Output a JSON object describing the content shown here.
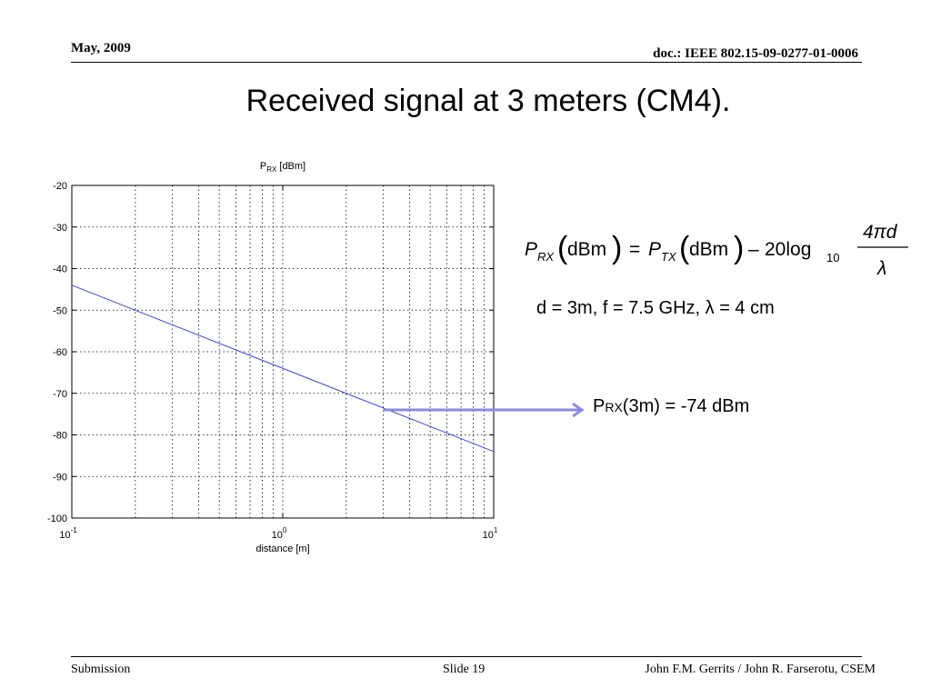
{
  "header": {
    "date": "May, 2009",
    "doc": "doc.: IEEE 802.15-09-0277-01-0006"
  },
  "slide_title": "Received signal at 3 meters (CM4).",
  "equation": {
    "lhs_symbol": "P",
    "lhs_sub": "RX",
    "unit": "dBm",
    "rhs_symbol": "P",
    "rhs_sub": "TX",
    "minus": "–",
    "coef": "20log",
    "log_base": "10",
    "numerator": "4πd",
    "denominator": "λ",
    "equals": "="
  },
  "params_text": "d = 3m, f = 7.5 GHz,  λ = 4 cm",
  "annotation": {
    "prefix": "P",
    "sub": "RX",
    "suffix": "(3m) = -74 dBm"
  },
  "chart_data": {
    "type": "line",
    "title_main": "P",
    "title_sub": "RX",
    "title_unit": " [dBm]",
    "xlabel": "distance [m]",
    "xscale": "log",
    "xlim": [
      0.1,
      10
    ],
    "ylim": [
      -100,
      -20
    ],
    "grid": true,
    "x_ticks": [
      {
        "base": "10",
        "exp": "-1",
        "value": 0.1
      },
      {
        "base": "10",
        "exp": "0",
        "value": 1
      },
      {
        "base": "10",
        "exp": "1",
        "value": 10
      }
    ],
    "y_ticks": [
      "-20",
      "-30",
      "-40",
      "-50",
      "-60",
      "-70",
      "-80",
      "-90",
      "-100"
    ],
    "series": [
      {
        "color": "#3d44d8",
        "x": [
          0.1,
          10
        ],
        "y": [
          -44,
          -84
        ]
      }
    ],
    "marker_point": {
      "x": 3,
      "y": -74
    },
    "arrow_color": "#8a8ae6"
  },
  "footer": {
    "left": "Submission",
    "center": "Slide 19",
    "right": "John F.M. Gerrits / John R. Farserotu, CSEM"
  }
}
